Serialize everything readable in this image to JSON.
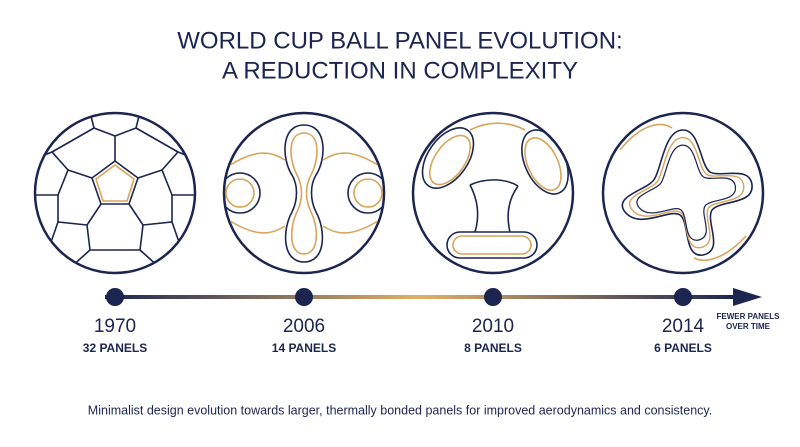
{
  "title": {
    "lines": [
      "WORLD CUP BALL PANEL EVOLUTION:",
      "A REDUCTION IN COMPLEXITY"
    ]
  },
  "timeline": {
    "items": [
      {
        "year": "1970",
        "panels": "32 PANELS"
      },
      {
        "year": "2006",
        "panels": "14 PANELS"
      },
      {
        "year": "2010",
        "panels": "8 PANELS"
      },
      {
        "year": "2014",
        "panels": "6 PANELS"
      }
    ],
    "arrow_label": [
      "FEWER PANELS",
      "OVER TIME"
    ]
  },
  "caption": "Minimalist design evolution towards larger, thermally bonded panels for improved aerodynamics and consistency."
}
